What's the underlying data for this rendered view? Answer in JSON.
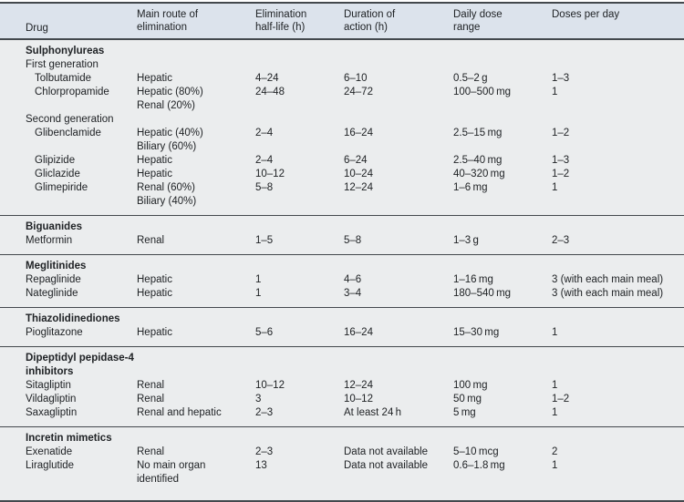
{
  "table": {
    "columns": [
      "Drug",
      "Main route of\nelimination",
      "Elimination\nhalf-life (h)",
      "Duration of\naction (h)",
      "Daily dose\nrange",
      "Doses per day"
    ],
    "sections": [
      {
        "title": "Sulphonylureas",
        "rows": [
          {
            "type": "subheader",
            "drug": "First generation"
          },
          {
            "type": "drug",
            "indent": true,
            "drug": "Tolbutamide",
            "route": "Hepatic",
            "half_life": "4–24",
            "duration": "6–10",
            "dose": "0.5–2 g",
            "doses": "1–3"
          },
          {
            "type": "drug",
            "indent": true,
            "drug": "Chlorpropamide",
            "route": "Hepatic (80%)\nRenal (20%)",
            "half_life": "24–48",
            "duration": "24–72",
            "dose": "100–500 mg",
            "doses": "1"
          },
          {
            "type": "subheader",
            "drug": "Second generation"
          },
          {
            "type": "drug",
            "indent": true,
            "drug": "Glibenclamide",
            "route": "Hepatic (40%)\nBiliary (60%)",
            "half_life": "2–4",
            "duration": "16–24",
            "dose": "2.5–15 mg",
            "doses": "1–2"
          },
          {
            "type": "drug",
            "indent": true,
            "drug": "Glipizide",
            "route": "Hepatic",
            "half_life": "2–4",
            "duration": "6–24",
            "dose": "2.5–40 mg",
            "doses": "1–3"
          },
          {
            "type": "drug",
            "indent": true,
            "drug": "Gliclazide",
            "route": "Hepatic",
            "half_life": "10–12",
            "duration": "10–24",
            "dose": "40–320 mg",
            "doses": "1–2"
          },
          {
            "type": "drug",
            "indent": true,
            "drug": "Glimepiride",
            "route": "Renal (60%)\nBiliary (40%)",
            "half_life": "5–8",
            "duration": "12–24",
            "dose": "1–6 mg",
            "doses": "1"
          }
        ]
      },
      {
        "title": "Biguanides",
        "rows": [
          {
            "type": "drug",
            "indent": false,
            "drug": "Metformin",
            "route": "Renal",
            "half_life": "1–5",
            "duration": "5–8",
            "dose": "1–3 g",
            "doses": "2–3"
          }
        ]
      },
      {
        "title": "Meglitinides",
        "rows": [
          {
            "type": "drug",
            "indent": false,
            "drug": "Repaglinide",
            "route": "Hepatic",
            "half_life": "1",
            "duration": "4–6",
            "dose": "1–16 mg",
            "doses": "3 (with each main meal)"
          },
          {
            "type": "drug",
            "indent": false,
            "drug": "Nateglinide",
            "route": "Hepatic",
            "half_life": "1",
            "duration": "3–4",
            "dose": "180–540 mg",
            "doses": "3 (with each main meal)"
          }
        ]
      },
      {
        "title": "Thiazolidinediones",
        "rows": [
          {
            "type": "drug",
            "indent": false,
            "drug": "Pioglitazone",
            "route": "Hepatic",
            "half_life": "5–6",
            "duration": "16–24",
            "dose": "15–30 mg",
            "doses": "1"
          }
        ]
      },
      {
        "title": "Dipeptidyl pepidase-4 inhibitors",
        "rows": [
          {
            "type": "drug",
            "indent": false,
            "drug": "Sitagliptin",
            "route": "Renal",
            "half_life": "10–12",
            "duration": "12–24",
            "dose": "100 mg",
            "doses": "1"
          },
          {
            "type": "drug",
            "indent": false,
            "drug": "Vildagliptin",
            "route": "Renal",
            "half_life": "3",
            "duration": "10–12",
            "dose": "50 mg",
            "doses": "1–2"
          },
          {
            "type": "drug",
            "indent": false,
            "drug": "Saxagliptin",
            "route": "Renal and hepatic",
            "half_life": "2–3",
            "duration": "At least 24 h",
            "dose": "5 mg",
            "doses": "1"
          }
        ]
      },
      {
        "title": "Incretin mimetics",
        "rows": [
          {
            "type": "drug",
            "indent": false,
            "drug": "Exenatide",
            "route": "Renal",
            "half_life": "2–3",
            "duration": "Data not available",
            "dose": "5–10 mcg",
            "doses": "2"
          },
          {
            "type": "drug",
            "indent": false,
            "drug": "Liraglutide",
            "route": "No main organ\nidentified",
            "half_life": "13",
            "duration": "Data not available",
            "dose": "0.6–1.8 mg",
            "doses": "1"
          }
        ]
      }
    ],
    "colors": {
      "header_bg": "#dce3ec",
      "body_bg": "#ebedee",
      "rule": "#43484d",
      "text": "#202326"
    }
  }
}
